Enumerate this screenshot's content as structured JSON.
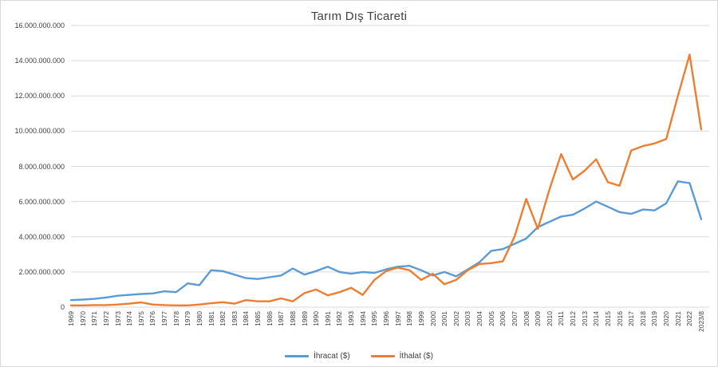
{
  "chart_data": {
    "type": "line",
    "title": "Tarım Dış Ticareti",
    "xlabel": "",
    "ylabel": "",
    "ylim": [
      0,
      16000000000
    ],
    "ytick_step": 2000000000,
    "grid": "horizontal",
    "legend_position": "bottom-center",
    "gridline_color": "#d9d9d9",
    "axis_text_color": "#404040",
    "categories": [
      "1969",
      "1970",
      "1971",
      "1972",
      "1973",
      "1974",
      "1975",
      "1976",
      "1977",
      "1978",
      "1979",
      "1980",
      "1981",
      "1982",
      "1983",
      "1984",
      "1985",
      "1986",
      "1987",
      "1988",
      "1989",
      "1990",
      "1991",
      "1992",
      "1993",
      "1994",
      "1995",
      "1996",
      "1997",
      "1998",
      "1999",
      "2000",
      "2001",
      "2002",
      "2003",
      "2004",
      "2005",
      "2006",
      "2007",
      "2008",
      "2009",
      "2010",
      "2011",
      "2012",
      "2013",
      "2014",
      "2015",
      "2016",
      "2017",
      "2018",
      "2019",
      "2020",
      "2021",
      "2022",
      "2023/8"
    ],
    "series": [
      {
        "name": "İhracat ($)",
        "color": "#5b9bd5",
        "values": [
          400000000,
          430000000,
          470000000,
          550000000,
          650000000,
          700000000,
          750000000,
          780000000,
          900000000,
          850000000,
          1350000000,
          1250000000,
          2100000000,
          2050000000,
          1850000000,
          1650000000,
          1600000000,
          1700000000,
          1800000000,
          2200000000,
          1850000000,
          2050000000,
          2300000000,
          2000000000,
          1900000000,
          2000000000,
          1950000000,
          2150000000,
          2300000000,
          2350000000,
          2100000000,
          1800000000,
          2000000000,
          1750000000,
          2150000000,
          2550000000,
          3200000000,
          3300000000,
          3600000000,
          3900000000,
          4550000000,
          4850000000,
          5150000000,
          5250000000,
          5600000000,
          6000000000,
          5700000000,
          5400000000,
          5300000000,
          5550000000,
          5500000000,
          5900000000,
          7150000000,
          7050000000,
          5000000000
        ]
      },
      {
        "name": "İthalat ($)",
        "color": "#ed7d31",
        "values": [
          100000000,
          100000000,
          120000000,
          120000000,
          150000000,
          200000000,
          270000000,
          150000000,
          120000000,
          100000000,
          100000000,
          150000000,
          220000000,
          280000000,
          200000000,
          400000000,
          330000000,
          330000000,
          500000000,
          330000000,
          800000000,
          1000000000,
          670000000,
          850000000,
          1100000000,
          700000000,
          1550000000,
          2050000000,
          2250000000,
          2100000000,
          1550000000,
          1900000000,
          1300000000,
          1550000000,
          2100000000,
          2450000000,
          2500000000,
          2600000000,
          4000000000,
          6150000000,
          4450000000,
          6700000000,
          8700000000,
          7250000000,
          7750000000,
          8400000000,
          7100000000,
          6900000000,
          8900000000,
          9150000000,
          9300000000,
          9550000000,
          12000000000,
          14350000000,
          10100000000
        ]
      }
    ]
  }
}
